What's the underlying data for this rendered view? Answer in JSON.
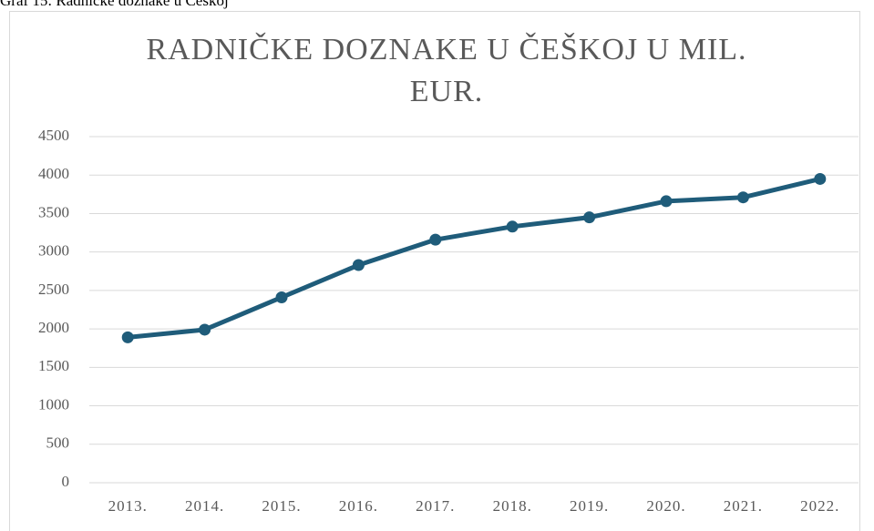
{
  "caption": "Graf 15: Radničke doznake u Češkoj",
  "chart_data": {
    "type": "line",
    "title": "RADNIČKE DOZNAKE U ČEŠKOJ U MIL. EUR.",
    "categories": [
      "2013.",
      "2014.",
      "2015.",
      "2016.",
      "2017.",
      "2018.",
      "2019.",
      "2020.",
      "2021.",
      "2022."
    ],
    "values": [
      1890,
      1990,
      2410,
      2830,
      3160,
      3330,
      3450,
      3660,
      3710,
      3950
    ],
    "color": "#1f5c7a",
    "ylim": [
      0,
      4500
    ],
    "yticks": [
      0,
      500,
      1000,
      1500,
      2000,
      2500,
      3000,
      3500,
      4000,
      4500
    ],
    "grid": true
  }
}
